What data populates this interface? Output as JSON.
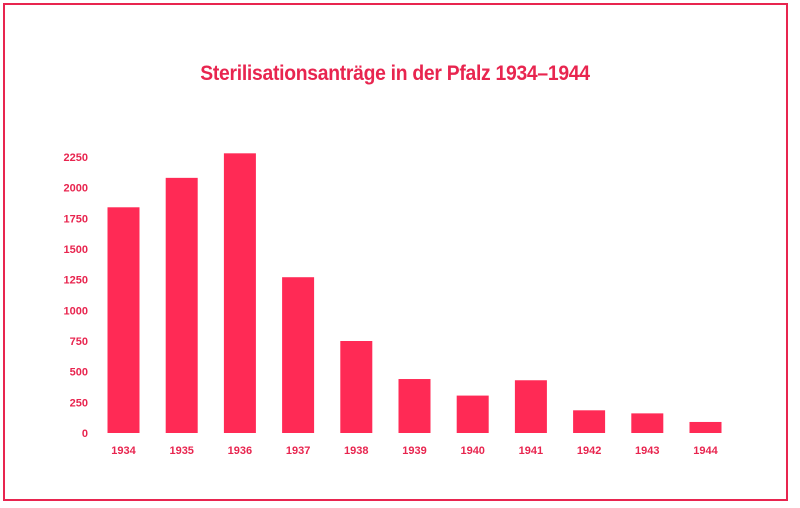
{
  "chart_data": {
    "type": "bar",
    "title": "Sterilisationsanträge in der Pfalz 1934–1944",
    "xlabel": "",
    "ylabel": "",
    "categories": [
      "1934",
      "1935",
      "1936",
      "1937",
      "1938",
      "1939",
      "1940",
      "1941",
      "1942",
      "1943",
      "1944"
    ],
    "values": [
      1840,
      2080,
      2280,
      1270,
      750,
      440,
      305,
      430,
      185,
      160,
      90
    ],
    "ylim": [
      0,
      2250
    ],
    "yticks": [
      0,
      250,
      500,
      750,
      1000,
      1250,
      1500,
      1750,
      2000,
      2250
    ],
    "grid": false,
    "legend": "none",
    "color": "#ff2a55"
  }
}
